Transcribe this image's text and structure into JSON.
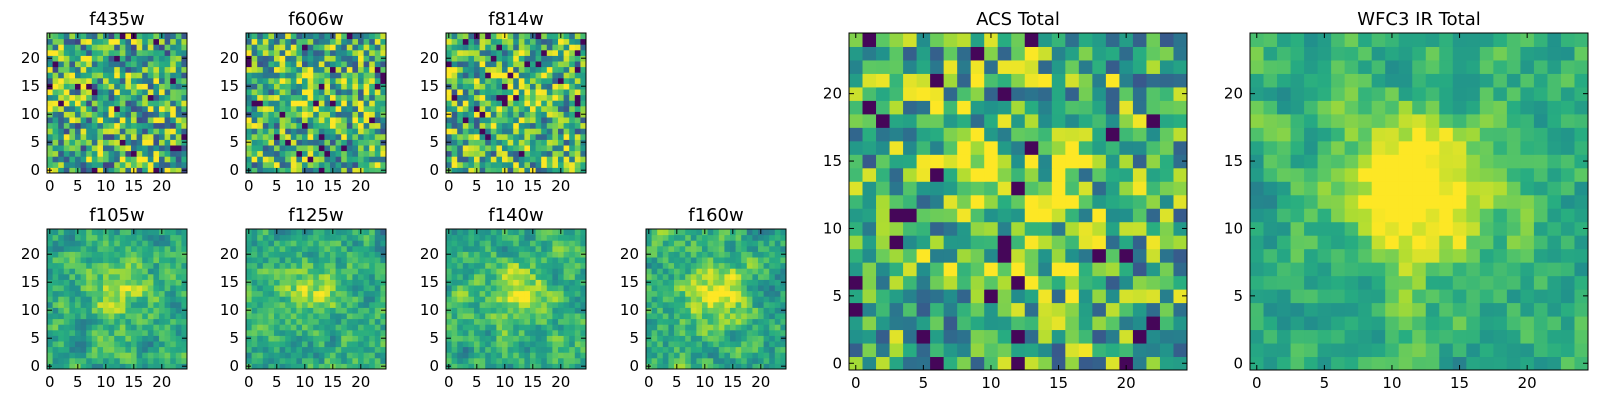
{
  "chart_data": [
    {
      "type": "heatmap",
      "title": "f435w",
      "grid_size": 25,
      "xlim": [
        0,
        24
      ],
      "ylim": [
        0,
        24
      ],
      "xticks": [
        0,
        5,
        10,
        15,
        20
      ],
      "yticks": [
        0,
        5,
        10,
        15,
        20
      ],
      "colormap": "viridis",
      "seed": 11,
      "smooth": 0.0,
      "center_peak": 0.05,
      "noise": 0.45
    },
    {
      "type": "heatmap",
      "title": "f606w",
      "grid_size": 25,
      "xlim": [
        0,
        24
      ],
      "ylim": [
        0,
        24
      ],
      "xticks": [
        0,
        5,
        10,
        15,
        20
      ],
      "yticks": [
        0,
        5,
        10,
        15,
        20
      ],
      "colormap": "viridis",
      "seed": 23,
      "smooth": 0.0,
      "center_peak": 0.12,
      "noise": 0.4
    },
    {
      "type": "heatmap",
      "title": "f814w",
      "grid_size": 25,
      "xlim": [
        0,
        24
      ],
      "ylim": [
        0,
        24
      ],
      "xticks": [
        0,
        5,
        10,
        15,
        20
      ],
      "yticks": [
        0,
        5,
        10,
        15,
        20
      ],
      "colormap": "viridis",
      "seed": 37,
      "smooth": 0.0,
      "center_peak": 0.18,
      "noise": 0.4
    },
    {
      "type": "heatmap",
      "title": "f105w",
      "grid_size": 25,
      "xlim": [
        0,
        24
      ],
      "ylim": [
        0,
        24
      ],
      "xticks": [
        0,
        5,
        10,
        15,
        20
      ],
      "yticks": [
        0,
        5,
        10,
        15,
        20
      ],
      "colormap": "viridis",
      "seed": 41,
      "smooth": 1.0,
      "center_peak": 0.25,
      "noise": 0.35
    },
    {
      "type": "heatmap",
      "title": "f125w",
      "grid_size": 25,
      "xlim": [
        0,
        24
      ],
      "ylim": [
        0,
        24
      ],
      "xticks": [
        0,
        5,
        10,
        15,
        20
      ],
      "yticks": [
        0,
        5,
        10,
        15,
        20
      ],
      "colormap": "viridis",
      "seed": 53,
      "smooth": 1.0,
      "center_peak": 0.25,
      "noise": 0.35
    },
    {
      "type": "heatmap",
      "title": "f140w",
      "grid_size": 25,
      "xlim": [
        0,
        24
      ],
      "ylim": [
        0,
        24
      ],
      "xticks": [
        0,
        5,
        10,
        15,
        20
      ],
      "yticks": [
        0,
        5,
        10,
        15,
        20
      ],
      "colormap": "viridis",
      "seed": 67,
      "smooth": 1.0,
      "center_peak": 0.3,
      "noise": 0.35
    },
    {
      "type": "heatmap",
      "title": "f160w",
      "grid_size": 25,
      "xlim": [
        0,
        24
      ],
      "ylim": [
        0,
        24
      ],
      "xticks": [
        0,
        5,
        10,
        15,
        20
      ],
      "yticks": [
        0,
        5,
        10,
        15,
        20
      ],
      "colormap": "viridis",
      "seed": 79,
      "smooth": 1.0,
      "center_peak": 0.35,
      "noise": 0.35
    },
    {
      "type": "heatmap",
      "title": "ACS Total",
      "grid_size": 25,
      "xlim": [
        0,
        24
      ],
      "ylim": [
        0,
        24
      ],
      "xticks": [
        0,
        5,
        10,
        15,
        20
      ],
      "yticks": [
        0,
        5,
        10,
        15,
        20
      ],
      "colormap": "viridis",
      "seed": 97,
      "smooth": 0.0,
      "center_peak": 0.2,
      "noise": 0.38
    },
    {
      "type": "heatmap",
      "title": "WFC3 IR Total",
      "grid_size": 25,
      "xlim": [
        0,
        24
      ],
      "ylim": [
        0,
        24
      ],
      "xticks": [
        0,
        5,
        10,
        15,
        20
      ],
      "yticks": [
        0,
        5,
        10,
        15,
        20
      ],
      "colormap": "viridis",
      "seed": 101,
      "smooth": 1.0,
      "center_peak": 0.55,
      "noise": 0.28
    }
  ]
}
